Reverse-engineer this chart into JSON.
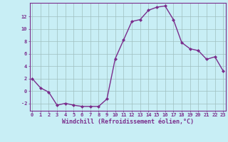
{
  "x": [
    0,
    1,
    2,
    3,
    4,
    5,
    6,
    7,
    8,
    9,
    10,
    11,
    12,
    13,
    14,
    15,
    16,
    17,
    18,
    19,
    20,
    21,
    22,
    23
  ],
  "y": [
    2,
    0.5,
    -0.2,
    -2.3,
    -2.0,
    -2.3,
    -2.5,
    -2.5,
    -2.5,
    -1.3,
    5.2,
    8.2,
    11.2,
    11.5,
    13.0,
    13.5,
    13.7,
    11.5,
    7.8,
    6.8,
    6.5,
    5.1,
    5.5,
    3.2
  ],
  "line_color": "#7a2d8c",
  "marker": "D",
  "marker_size": 2.0,
  "bg_color": "#c8eef5",
  "grid_color": "#9fbfbf",
  "xlabel": "Windchill (Refroidissement éolien,°C)",
  "xlabel_color": "#7a2d8c",
  "yticks": [
    -2,
    0,
    2,
    4,
    6,
    8,
    10,
    12
  ],
  "xticks": [
    0,
    1,
    2,
    3,
    4,
    5,
    6,
    7,
    8,
    9,
    10,
    11,
    12,
    13,
    14,
    15,
    16,
    17,
    18,
    19,
    20,
    21,
    22,
    23
  ],
  "ylim": [
    -3.2,
    14.2
  ],
  "xlim": [
    -0.3,
    23.3
  ],
  "tick_color": "#7a2d8c",
  "tick_fontsize": 5.0,
  "xlabel_fontsize": 6.0,
  "linewidth": 1.0
}
